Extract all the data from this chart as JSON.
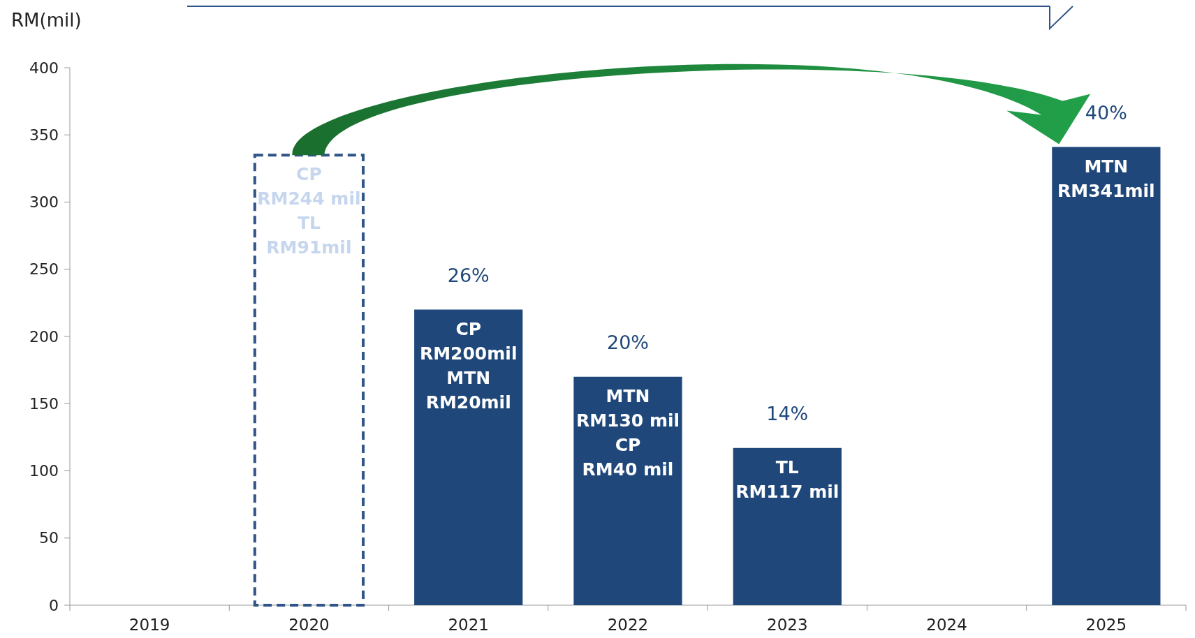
{
  "chart_data": {
    "type": "bar",
    "ylabel": "RM(mil)",
    "categories": [
      "2019",
      "2020",
      "2021",
      "2022",
      "2023",
      "2024",
      "2025"
    ],
    "series": [
      {
        "color": "#2f5487",
        "line_style": "dashed",
        "values": [
          null,
          335,
          null,
          null,
          null,
          null,
          null
        ],
        "value_labels": [
          null,
          "CP\nRM244 mil\nTL\nRM91mil",
          null,
          null,
          null,
          null,
          null
        ]
      },
      {
        "color": "#1f477a",
        "values": [
          null,
          null,
          220,
          170,
          117,
          null,
          341
        ],
        "value_labels": [
          null,
          null,
          "CP\nRM200mil\nMTN\nRM20mil",
          "MTN\nRM130 mil\nCP\nRM40 mil",
          "TL\nRM117 mil",
          null,
          "MTN\nRM341mil"
        ]
      }
    ],
    "ylim": [
      0,
      400
    ],
    "yticks": [
      0,
      50,
      100,
      150,
      200,
      250,
      300,
      350,
      400
    ],
    "annotations": [
      {
        "text": "26%",
        "x": "2021",
        "y": 220
      },
      {
        "text": "20%",
        "x": "2022",
        "y": 170
      },
      {
        "text": "14%",
        "x": "2023",
        "y": 117
      },
      {
        "text": "40%",
        "x": "2025",
        "y": 341
      }
    ]
  }
}
